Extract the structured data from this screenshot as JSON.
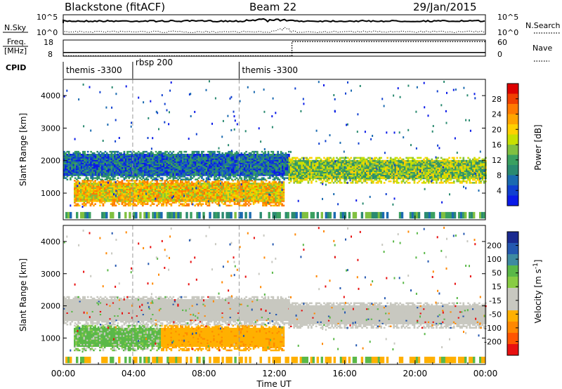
{
  "header": {
    "station": "Blackstone (fitACF)",
    "beam": "Beam 22",
    "date": "29/Jan/2015"
  },
  "chart_data": {
    "type": "heatmap",
    "title": "Blackstone (fitACF)",
    "beam": "Beam 22",
    "date": "29/Jan/2015",
    "time_axis": {
      "label": "Time UT",
      "range_hours": [
        0,
        24
      ],
      "tick_hours": [
        0,
        4,
        8,
        12,
        16,
        20,
        24
      ],
      "tick_labels": [
        "00:00",
        "04:00",
        "08:00",
        "12:00",
        "16:00",
        "20:00",
        "00:00"
      ]
    },
    "nsky_panel": {
      "left_label": "N.Sky",
      "left_ticks": [
        "10^5",
        "10^0"
      ],
      "right_label": "N.Search",
      "right_ticks": [
        "10^5",
        "10^0"
      ],
      "line_style_right": "dotted"
    },
    "freq_panel": {
      "left_label": "Freq.",
      "left_unit": "[MHz]",
      "left_ticks": [
        "18",
        "8"
      ],
      "left_range": [
        8,
        18
      ],
      "right_label": "Nave",
      "right_ticks": [
        "60",
        "0"
      ],
      "right_range": [
        0,
        60
      ],
      "freq_series": [
        {
          "t": 0,
          "f": 10.3
        },
        {
          "t": 24,
          "f": 10.3
        }
      ],
      "nave_series": [
        {
          "t": 0,
          "n": 1
        },
        {
          "t": 13.0,
          "n": 1
        },
        {
          "t": 13.0,
          "n": 54
        },
        {
          "t": 24,
          "n": 54
        }
      ]
    },
    "cpid_panel": {
      "label": "CPID",
      "segments": [
        {
          "start_hour": 0,
          "text": "themis -3300"
        },
        {
          "start_hour": 3.95,
          "text": "rbsp 200"
        },
        {
          "start_hour": 10.0,
          "text": "themis -3300"
        }
      ]
    },
    "power_panel": {
      "ylabel": "Slant Range [km]",
      "yrange": [
        180,
        4500
      ],
      "yticks": [
        1000,
        2000,
        3000,
        4000
      ],
      "colorbar_label": "Power [dB]",
      "colorbar_ticks": [
        "28",
        "24",
        "20",
        "16",
        "12",
        "8",
        "4"
      ],
      "colorbar_colors": [
        "#dd0000",
        "#f04000",
        "#ff7a00",
        "#ffa500",
        "#ffd000",
        "#c8e000",
        "#80c040",
        "#3aa060",
        "#2a8a70",
        "#1a6ab0",
        "#1040d0",
        "#0a1ae8"
      ]
    },
    "velocity_panel": {
      "ylabel": "Slant Range [km]",
      "yrange": [
        180,
        4500
      ],
      "yticks": [
        1000,
        2000,
        3000,
        4000
      ],
      "colorbar_label": "Velocity [m s",
      "colorbar_label_sup": "-1",
      "colorbar_label_end": "]",
      "colorbar_ticks": [
        "200",
        "100",
        "50",
        "15",
        "-15",
        "-50",
        "-100",
        "-200"
      ],
      "colorbar_colors": [
        "#1a2a90",
        "#2458b0",
        "#3e8aa0",
        "#5ab848",
        "#88cc44",
        "#c8c8c0",
        "#c8c8c0",
        "#ffb000",
        "#ff8800",
        "#ff5500",
        "#e81010"
      ]
    },
    "echo_bands": [
      {
        "t0": 0.6,
        "t1": 12.5,
        "r0": 600,
        "r1": 1400,
        "power": "strong",
        "velocity": "green-then-orange"
      },
      {
        "t0": 0.0,
        "t1": 12.8,
        "r0": 1400,
        "r1": 2300,
        "power": "weak",
        "velocity": "grey"
      },
      {
        "t0": 12.8,
        "t1": 24.0,
        "r0": 1300,
        "r1": 2100,
        "power": "medium",
        "velocity": "grey"
      }
    ]
  }
}
